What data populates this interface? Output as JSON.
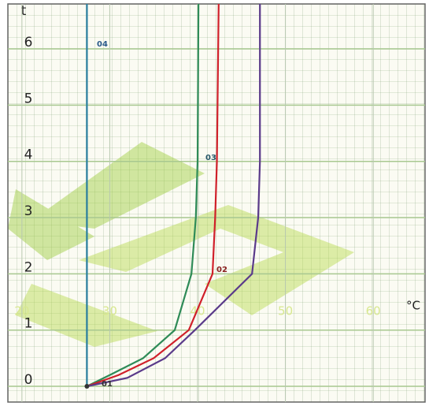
{
  "chart_data": {
    "type": "line",
    "x_label": "°C",
    "y_label": "t",
    "xlim": [
      18.4,
      65.9
    ],
    "ylim": [
      -0.28,
      6.8
    ],
    "xticks": [
      20,
      30,
      40,
      50,
      60
    ],
    "yticks": [
      0,
      1,
      2,
      3,
      4,
      5,
      6
    ],
    "grid": true,
    "series": [
      {
        "color": "#2a7fa0",
        "x": [
          27.4,
          27.4
        ],
        "values": [
          0,
          6.8
        ]
      },
      {
        "color": "#2e8b57",
        "x": [
          27.4,
          30,
          33.8,
          37.4,
          39.3,
          39.8,
          40,
          40.1
        ],
        "values": [
          0,
          0.2,
          0.5,
          1,
          2,
          3,
          4,
          6.8
        ]
      },
      {
        "color": "#d0202a",
        "x": [
          27.4,
          31,
          35,
          39,
          41.7,
          42,
          42.2,
          42.4
        ],
        "values": [
          0,
          0.2,
          0.5,
          1,
          2,
          3,
          4,
          6.8
        ]
      },
      {
        "color": "#5a3a8a",
        "x": [
          27.4,
          32,
          36.3,
          39.7,
          46.2,
          46.9,
          47.1,
          47.1
        ],
        "values": [
          0,
          0.15,
          0.5,
          1,
          2,
          3,
          4,
          6.8
        ]
      }
    ],
    "annotations": [
      "01",
      "02",
      "03",
      "04"
    ]
  }
}
